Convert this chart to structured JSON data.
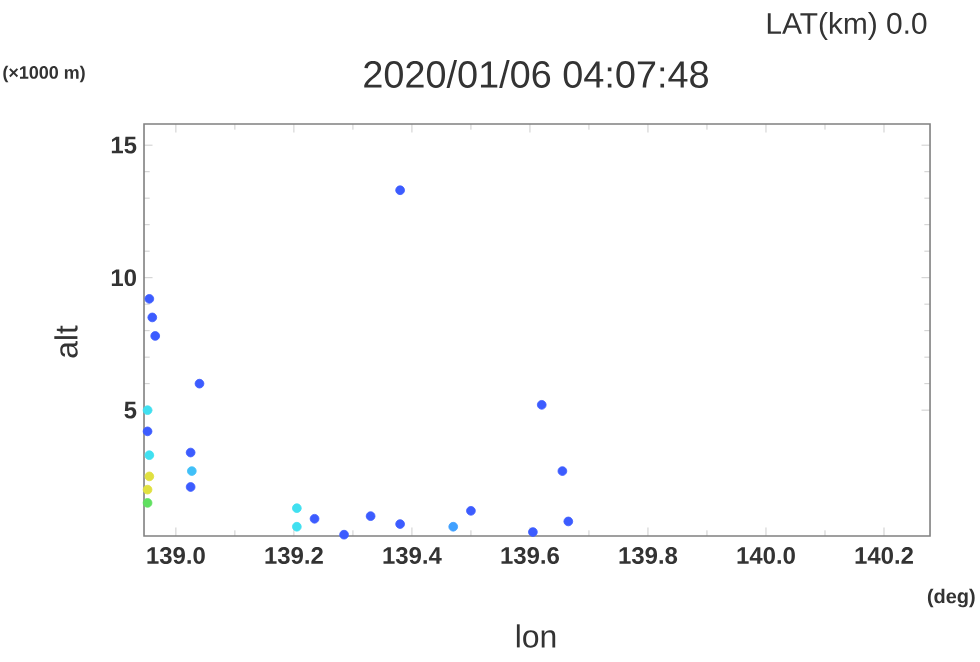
{
  "chart_data": {
    "type": "scatter",
    "title": "2020/01/06 04:07:48",
    "xlabel": "lon",
    "ylabel": "alt",
    "annotations": [
      "LAT(km) 0.0",
      "(×1000 m)",
      "(deg)"
    ],
    "x": [
      138.955,
      138.96,
      138.965,
      138.952,
      138.952,
      138.955,
      138.955,
      138.952,
      138.952,
      139.025,
      139.027,
      139.025,
      139.04,
      139.205,
      139.205,
      139.235,
      139.285,
      139.33,
      139.38,
      139.38,
      139.47,
      139.5,
      139.62,
      139.655,
      139.665,
      139.605
    ],
    "values": [
      9.2,
      8.5,
      7.8,
      5.0,
      4.2,
      3.3,
      2.5,
      2.0,
      1.5,
      3.4,
      2.7,
      2.1,
      6.0,
      1.3,
      0.6,
      0.9,
      0.3,
      1.0,
      0.7,
      13.3,
      0.6,
      1.2,
      5.2,
      2.7,
      0.8,
      0.4
    ],
    "colors": [
      "#3c5cff",
      "#3c5cff",
      "#3c5cff",
      "#40e0f0",
      "#3c5cff",
      "#40e0f0",
      "#e0e040",
      "#e0e040",
      "#60e060",
      "#3c5cff",
      "#40c0f8",
      "#3c5cff",
      "#3c5cff",
      "#40e0f0",
      "#40e0f0",
      "#3c5cff",
      "#3c5cff",
      "#3c5cff",
      "#3c5cff",
      "#3c5cff",
      "#40a0ff",
      "#3c5cff",
      "#3c5cff",
      "#3c5cff",
      "#3c5cff",
      "#3c5cff"
    ],
    "xlim": [
      138.946,
      140.278
    ],
    "ylim": [
      0.25,
      15.8
    ],
    "xticks": [
      {
        "value": 139.0,
        "label": "139.0"
      },
      {
        "value": 139.2,
        "label": "139.2"
      },
      {
        "value": 139.4,
        "label": "139.4"
      },
      {
        "value": 139.6,
        "label": "139.6"
      },
      {
        "value": 139.8,
        "label": "139.8"
      },
      {
        "value": 140.0,
        "label": "140.0"
      },
      {
        "value": 140.2,
        "label": "140.2"
      }
    ],
    "yticks": [
      5,
      10,
      15
    ]
  }
}
